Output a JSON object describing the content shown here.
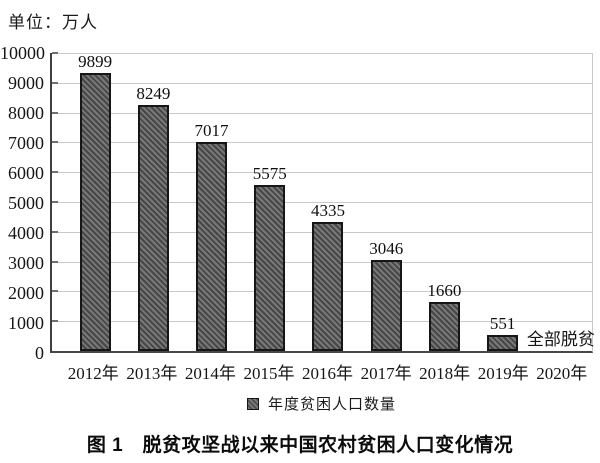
{
  "unit_label": "单位：万人",
  "legend": {
    "label": "年度贫困人口数量"
  },
  "caption": "图 1　脱贫攻坚战以来中国农村贫困人口变化情况",
  "colors": {
    "bar_fill_base": "#787878",
    "bar_hatch_line": "#474747",
    "bar_border": "#161616",
    "gridline": "#c9c9c9",
    "axis": "#3f3f3f",
    "text": "#111111"
  },
  "chart_data": {
    "type": "bar",
    "title": "图 1　脱贫攻坚战以来中国农村贫困人口变化情况",
    "unit": "万人",
    "categories": [
      "2012年",
      "2013年",
      "2014年",
      "2015年",
      "2016年",
      "2017年",
      "2018年",
      "2019年",
      "2020年"
    ],
    "values": [
      9899,
      8249,
      7017,
      5575,
      4335,
      3046,
      1660,
      551,
      null
    ],
    "annotations": [
      {
        "category": "2020年",
        "text": "全部脱贫"
      }
    ],
    "data_labels_shown": true,
    "xlabel": "",
    "ylabel": "单位：万人",
    "ylim": [
      0,
      10000
    ],
    "ytick_step": 1000,
    "yticks": [
      0,
      1000,
      2000,
      3000,
      4000,
      5000,
      6000,
      7000,
      8000,
      9000,
      10000
    ],
    "grid": true,
    "legend_entries": [
      "年度贫困人口数量"
    ],
    "legend_position": "bottom",
    "bar_style": "diagonal-hatch"
  }
}
